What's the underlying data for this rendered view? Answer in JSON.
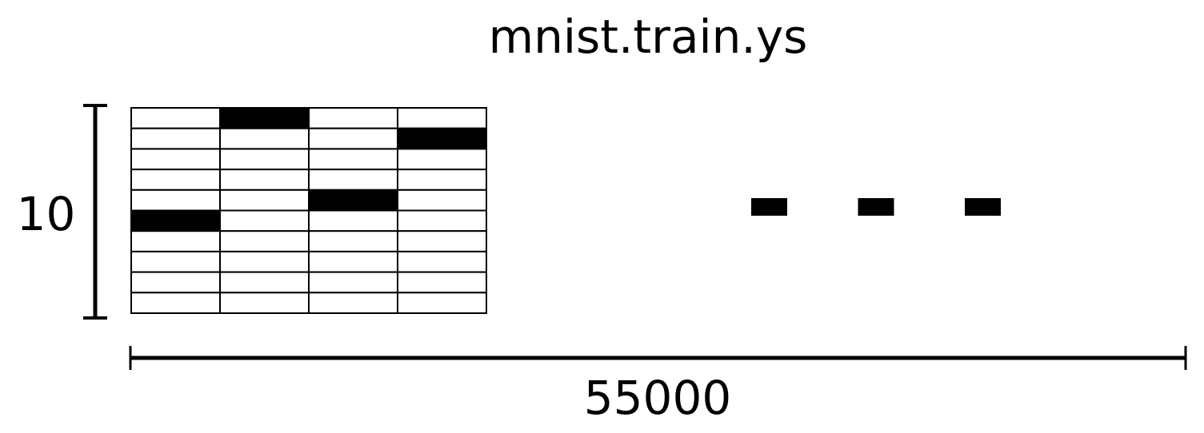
{
  "title": "mnist.train.ys",
  "rows_label": "10",
  "cols_label": "55000",
  "matrix": {
    "rows": 10,
    "columns_shown": 4,
    "one_hot_rows_by_column": [
      5,
      0,
      4,
      1
    ],
    "ellipsis_marks": 3
  },
  "colors": {
    "fill": "#000000",
    "background": "#ffffff"
  }
}
